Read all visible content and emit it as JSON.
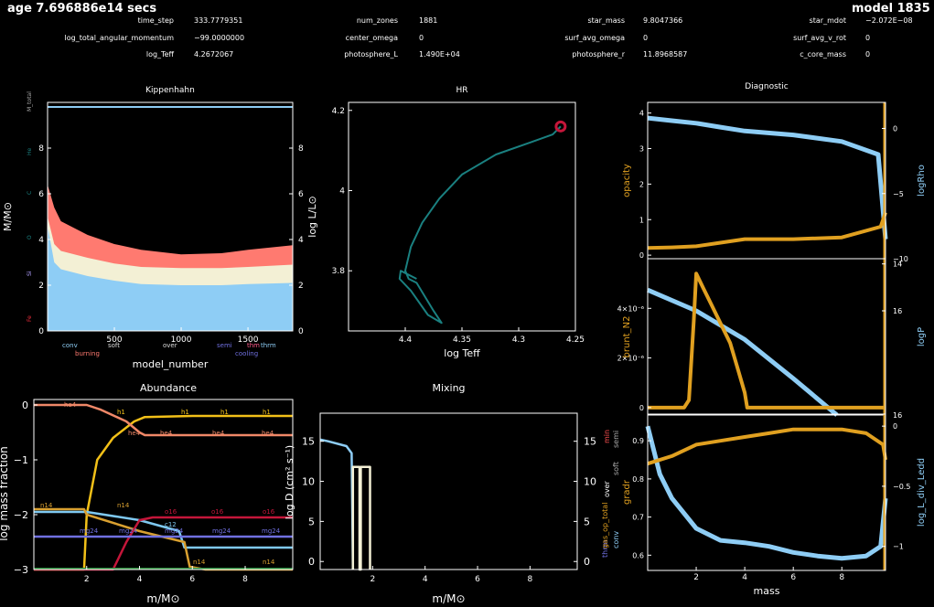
{
  "header": {
    "age": "age 7.696886e14 secs",
    "model": "model 1835",
    "fields": [
      {
        "label": "time_step",
        "value": "333.7779351"
      },
      {
        "label": "num_zones",
        "value": "1881"
      },
      {
        "label": "star_mass",
        "value": "9.8047366"
      },
      {
        "label": "star_mdot",
        "value": "−2.072E−08"
      },
      {
        "label": "log_total_angular_momentum",
        "value": "−99.0000000"
      },
      {
        "label": "center_omega",
        "value": "0"
      },
      {
        "label": "surf_avg_omega",
        "value": "0"
      },
      {
        "label": "surf_avg_v_rot",
        "value": "0"
      },
      {
        "label": "log_Teff",
        "value": "4.2672067"
      },
      {
        "label": "photosphere_L",
        "value": "1.490E+04"
      },
      {
        "label": "photosphere_r",
        "value": "11.8968587"
      },
      {
        "label": "c_core_mass",
        "value": "0"
      }
    ]
  },
  "colors": {
    "teal": "#1a8080",
    "blue": "#8ecdf5",
    "gold": "#e0a020",
    "salmon": "#ff7a70",
    "cream": "#f3f0d5",
    "crimson": "#c4163a",
    "yellow": "#f2c018",
    "purple": "#7070e0",
    "pink": "#ff5050"
  },
  "chart_data": [
    {
      "type": "area",
      "title": "Kippenhahn",
      "xlabel": "model_number",
      "ylabel": "M/M⊙",
      "y2label": "log L/L⊙",
      "xlim": [
        0,
        1835
      ],
      "ylim": [
        0,
        10
      ],
      "y2lim": [
        0,
        10
      ],
      "xticks": [
        "500",
        "1000",
        "1500"
      ],
      "yticks": [
        "0",
        "2",
        "4",
        "6",
        "8"
      ],
      "y2ticks": [
        "0",
        "2",
        "4",
        "6",
        "8"
      ],
      "side_labels": [
        "M_total",
        "He",
        "C",
        "O",
        "Si",
        "Fe"
      ],
      "legend": [
        "conv",
        "soft",
        "over",
        "semi",
        "thm",
        "thrm",
        "burning",
        "cooling"
      ],
      "x": [
        0,
        50,
        100,
        300,
        500,
        700,
        1000,
        1300,
        1500,
        1835
      ],
      "series": [
        {
          "name": "conv",
          "top": [
            4.6,
            3.0,
            2.7,
            2.4,
            2.2,
            2.05,
            2.0,
            2.0,
            2.05,
            2.1
          ]
        },
        {
          "name": "over",
          "top": [
            5.0,
            3.8,
            3.5,
            3.2,
            2.95,
            2.8,
            2.75,
            2.75,
            2.8,
            2.9
          ]
        },
        {
          "name": "burning",
          "top": [
            6.4,
            5.4,
            4.8,
            4.2,
            3.8,
            3.55,
            3.35,
            3.4,
            3.55,
            3.75
          ]
        },
        {
          "name": "M_total",
          "top": [
            9.8,
            9.8,
            9.8,
            9.8,
            9.8,
            9.8,
            9.8,
            9.8,
            9.8,
            9.8
          ]
        }
      ]
    },
    {
      "type": "line",
      "title": "HR",
      "xlabel": "log Teff",
      "ylabel": "",
      "xlim": [
        4.45,
        4.25
      ],
      "ylim": [
        3.65,
        4.22
      ],
      "xticks": [
        "4.4",
        "4.35",
        "4.3",
        "4.25"
      ],
      "yticks": [
        "3.8",
        "4",
        "4.2"
      ],
      "x": [
        4.263,
        4.27,
        4.29,
        4.32,
        4.35,
        4.37,
        4.385,
        4.395,
        4.4,
        4.397,
        4.39,
        4.375,
        4.368,
        4.38,
        4.395,
        4.405,
        4.404,
        4.39
      ],
      "y": [
        4.16,
        4.14,
        4.12,
        4.09,
        4.04,
        3.98,
        3.92,
        3.86,
        3.8,
        3.78,
        3.77,
        3.7,
        3.67,
        3.69,
        3.75,
        3.78,
        3.8,
        3.78
      ]
    },
    {
      "type": "line",
      "title": "Diagnostic",
      "xlabel": "mass",
      "panels": [
        {
          "ylabel": "opacity",
          "y2label": "logRho",
          "ylim": [
            -0.1,
            4.3
          ],
          "y2lim": [
            -10,
            2
          ],
          "yticks": [
            "0",
            "1",
            "2",
            "3",
            "4"
          ],
          "y2ticks": [
            "0",
            "−5",
            "−10"
          ],
          "series": [
            {
              "name": "opacity",
              "x": [
                0,
                1,
                2,
                3,
                4,
                6,
                8,
                9.6,
                9.8
              ],
              "values": [
                0.2,
                0.22,
                0.25,
                0.35,
                0.45,
                0.45,
                0.5,
                0.8,
                1.2
              ]
            },
            {
              "name": "logRho",
              "x": [
                0,
                1,
                2,
                3,
                4,
                6,
                8,
                9.5,
                9.8
              ],
              "values": [
                0.8,
                0.6,
                0.4,
                0.1,
                -0.2,
                -0.5,
                -1.0,
                -2.0,
                -8.5
              ]
            }
          ]
        },
        {
          "ylabel": "brunt_N2",
          "y2label": "logP",
          "ylim": [
            -3e-07,
            6e-06
          ],
          "y2lim": [
            14,
            17
          ],
          "yticks": [
            "0",
            "2×10⁻⁶",
            "4×10⁻⁶"
          ],
          "y2ticks": [
            "14",
            "16",
            "16"
          ],
          "series": [
            {
              "name": "brunt_N2",
              "x": [
                0,
                1.5,
                1.7,
                1.9,
                2.0,
                2.3,
                2.6,
                3.0,
                3.4,
                3.7,
                4.0,
                4.1,
                6,
                9.6,
                9.8
              ],
              "values": [
                0,
                0,
                3e-07,
                3.5e-06,
                5.4e-06,
                4.8e-06,
                4.2e-06,
                3.4e-06,
                2.6e-06,
                1.6e-06,
                6e-07,
                0,
                0,
                0,
                0
              ]
            },
            {
              "name": "logP",
              "x": [
                0,
                2,
                4,
                6,
                7.8
              ],
              "values": [
                16.4,
                16.0,
                15.45,
                14.7,
                14.0
              ]
            }
          ]
        },
        {
          "ylabel": "gradr",
          "y2label": "log_L_div_Ledd",
          "ylim": [
            0.56,
            0.97
          ],
          "y2lim": [
            -1.2,
            0.1
          ],
          "yticks": [
            "0.6",
            "0.7",
            "0.8",
            "0.9"
          ],
          "y2ticks": [
            "0",
            "−0.5",
            "−1"
          ],
          "series": [
            {
              "name": "gradr",
              "x": [
                0,
                1,
                2,
                3,
                4,
                5,
                6,
                7,
                8,
                9,
                9.7,
                9.8
              ],
              "values": [
                0.84,
                0.86,
                0.89,
                0.9,
                0.91,
                0.92,
                0.93,
                0.93,
                0.93,
                0.92,
                0.89,
                0.85
              ]
            },
            {
              "name": "log_L_div_Ledd",
              "x": [
                0,
                0.5,
                1,
                2,
                3,
                4,
                5,
                6,
                7,
                8,
                9,
                9.6,
                9.8
              ],
              "values": [
                0.0,
                -0.4,
                -0.6,
                -0.85,
                -0.95,
                -0.97,
                -1.0,
                -1.05,
                -1.08,
                -1.1,
                -1.08,
                -1.0,
                -0.6
              ]
            }
          ]
        }
      ],
      "mass_ticks": [
        "2",
        "4",
        "6",
        "8"
      ],
      "side_labels": [
        "min",
        "semi",
        "over",
        "soft",
        "conv",
        "thrm",
        "gas_op_total"
      ]
    },
    {
      "type": "line",
      "title": "Abundance",
      "xlabel": "m/M⊙",
      "ylabel": "log mass fraction",
      "xlim": [
        0,
        9.8
      ],
      "ylim": [
        -3,
        0.1
      ],
      "xticks": [
        "2",
        "4",
        "6",
        "8"
      ],
      "yticks": [
        "0",
        "−1",
        "−2",
        "−3"
      ],
      "series": [
        {
          "name": "h1",
          "x": [
            0,
            1.9,
            2.0,
            2.4,
            3.0,
            3.8,
            4.2,
            6,
            9.8
          ],
          "values": [
            -3,
            -3,
            -2,
            -1.0,
            -0.6,
            -0.3,
            -0.22,
            -0.2,
            -0.2
          ]
        },
        {
          "name": "he4",
          "x": [
            0,
            2.0,
            2.5,
            3.5,
            4.0,
            4.2,
            9.8
          ],
          "values": [
            0,
            0,
            -0.08,
            -0.3,
            -0.5,
            -0.55,
            -0.55
          ]
        },
        {
          "name": "c12",
          "x": [
            0,
            2,
            4,
            5.5,
            5.7,
            9.8
          ],
          "values": [
            -1.95,
            -1.95,
            -2.1,
            -2.3,
            -2.6,
            -2.6
          ]
        },
        {
          "name": "n14",
          "x": [
            0,
            1.9,
            2.0,
            4.0,
            5.7,
            5.9,
            6.5,
            9.8
          ],
          "values": [
            -1.9,
            -1.9,
            -2.0,
            -2.3,
            -2.5,
            -2.95,
            -3,
            -3
          ]
        },
        {
          "name": "o16",
          "x": [
            0,
            3,
            3.5,
            4,
            4.5,
            9.8
          ],
          "values": [
            -3,
            -3,
            -2.5,
            -2.1,
            -2.05,
            -2.05
          ]
        },
        {
          "name": "mg24",
          "x": [
            0,
            9.8
          ],
          "values": [
            -2.4,
            -2.4
          ]
        }
      ],
      "curve_labels": [
        "he4",
        "h1",
        "h1",
        "h1",
        "h1",
        "he4",
        "he4",
        "he4",
        "he4",
        "n14",
        "n14",
        "o16",
        "o16",
        "o16",
        "mg24",
        "mg24",
        "mg24",
        "mg24",
        "mg24",
        "n14",
        "n14",
        "c12"
      ]
    },
    {
      "type": "line",
      "title": "Mixing",
      "xlabel": "m/M⊙",
      "ylabel": "log D (cm² s⁻¹)",
      "xlim": [
        0,
        9.8
      ],
      "ylim": [
        -1,
        18.5
      ],
      "xticks": [
        "2",
        "4",
        "6",
        "8"
      ],
      "yticks": [
        "0",
        "5",
        "10",
        "15"
      ],
      "y2ticks": [
        "0",
        "5",
        "10",
        "15"
      ],
      "series": [
        {
          "name": "conv",
          "x": [
            0,
            0.3,
            1.0,
            1.2,
            1.25
          ],
          "values": [
            15.2,
            15.0,
            14.4,
            13.5,
            -1
          ]
        },
        {
          "name": "over",
          "x": [
            1.25,
            1.25,
            1.5,
            1.5,
            1.55,
            1.55,
            1.9,
            1.9
          ],
          "values": [
            -1,
            11.8,
            11.8,
            -1,
            -1,
            11.8,
            11.8,
            -1
          ]
        }
      ]
    }
  ]
}
